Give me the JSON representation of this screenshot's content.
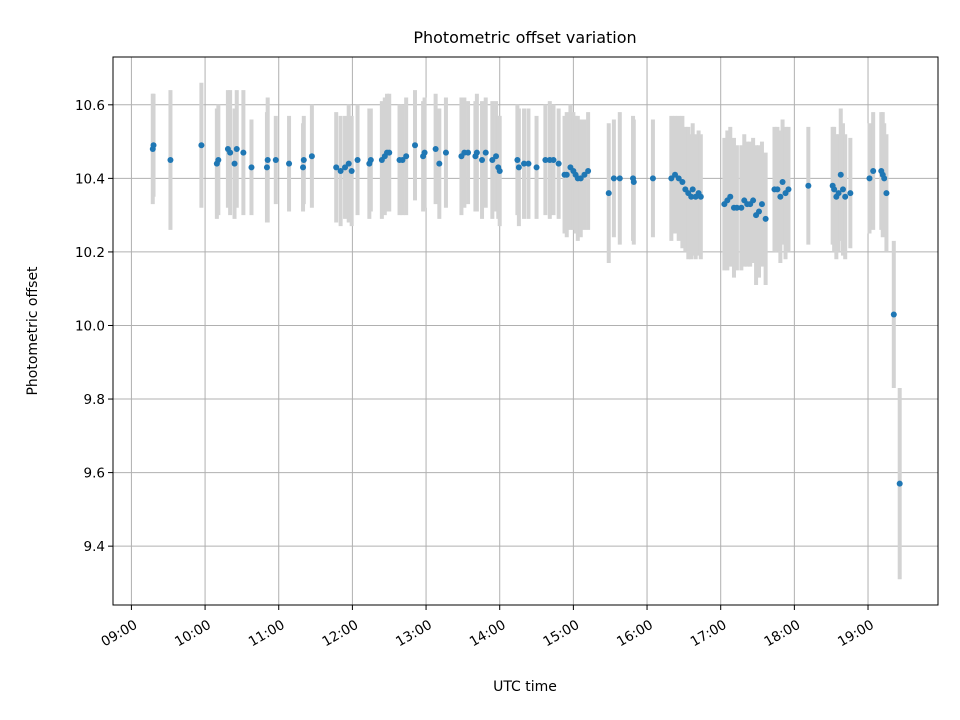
{
  "chart_data": {
    "type": "scatter",
    "title": "Photometric offset variation",
    "xlabel": "UTC time",
    "ylabel": "Photometric offset",
    "x_unit": "UTC hour (decimal)",
    "xlim": [
      8.75,
      19.95
    ],
    "ylim": [
      9.24,
      10.73
    ],
    "x_ticks": [
      {
        "value": 9,
        "label": "09:00"
      },
      {
        "value": 10,
        "label": "10:00"
      },
      {
        "value": 11,
        "label": "11:00"
      },
      {
        "value": 12,
        "label": "12:00"
      },
      {
        "value": 13,
        "label": "13:00"
      },
      {
        "value": 14,
        "label": "14:00"
      },
      {
        "value": 15,
        "label": "15:00"
      },
      {
        "value": 16,
        "label": "16:00"
      },
      {
        "value": 17,
        "label": "17:00"
      },
      {
        "value": 18,
        "label": "18:00"
      },
      {
        "value": 19,
        "label": "19:00"
      }
    ],
    "y_ticks": [
      {
        "value": 9.4,
        "label": "9.4"
      },
      {
        "value": 9.6,
        "label": "9.6"
      },
      {
        "value": 9.8,
        "label": "9.8"
      },
      {
        "value": 10.0,
        "label": "10.0"
      },
      {
        "value": 10.2,
        "label": "10.2"
      },
      {
        "value": 10.4,
        "label": "10.4"
      },
      {
        "value": 10.6,
        "label": "10.6"
      }
    ],
    "grid": true,
    "colors": {
      "marker": "#1f77b4",
      "error_bar": "#d3d3d3",
      "grid": "#b0b0b0"
    },
    "points": [
      {
        "x": 9.29,
        "y": 10.48,
        "err": 0.15
      },
      {
        "x": 9.3,
        "y": 10.49,
        "err": 0.14
      },
      {
        "x": 9.53,
        "y": 10.45,
        "err": 0.19
      },
      {
        "x": 9.95,
        "y": 10.49,
        "err": 0.17
      },
      {
        "x": 10.16,
        "y": 10.44,
        "err": 0.15
      },
      {
        "x": 10.18,
        "y": 10.45,
        "err": 0.15
      },
      {
        "x": 10.31,
        "y": 10.48,
        "err": 0.16
      },
      {
        "x": 10.34,
        "y": 10.47,
        "err": 0.17
      },
      {
        "x": 10.4,
        "y": 10.44,
        "err": 0.15
      },
      {
        "x": 10.43,
        "y": 10.48,
        "err": 0.16
      },
      {
        "x": 10.52,
        "y": 10.47,
        "err": 0.17
      },
      {
        "x": 10.63,
        "y": 10.43,
        "err": 0.13
      },
      {
        "x": 10.84,
        "y": 10.43,
        "err": 0.15
      },
      {
        "x": 10.85,
        "y": 10.45,
        "err": 0.17
      },
      {
        "x": 10.96,
        "y": 10.45,
        "err": 0.12
      },
      {
        "x": 11.14,
        "y": 10.44,
        "err": 0.13
      },
      {
        "x": 11.33,
        "y": 10.43,
        "err": 0.12
      },
      {
        "x": 11.34,
        "y": 10.45,
        "err": 0.12
      },
      {
        "x": 11.45,
        "y": 10.46,
        "err": 0.14
      },
      {
        "x": 11.78,
        "y": 10.43,
        "err": 0.15
      },
      {
        "x": 11.84,
        "y": 10.42,
        "err": 0.15
      },
      {
        "x": 11.9,
        "y": 10.43,
        "err": 0.14
      },
      {
        "x": 11.95,
        "y": 10.44,
        "err": 0.16
      },
      {
        "x": 11.99,
        "y": 10.42,
        "err": 0.15
      },
      {
        "x": 12.07,
        "y": 10.45,
        "err": 0.15
      },
      {
        "x": 12.23,
        "y": 10.44,
        "err": 0.15
      },
      {
        "x": 12.25,
        "y": 10.45,
        "err": 0.14
      },
      {
        "x": 12.4,
        "y": 10.45,
        "err": 0.16
      },
      {
        "x": 12.44,
        "y": 10.46,
        "err": 0.16
      },
      {
        "x": 12.47,
        "y": 10.47,
        "err": 0.16
      },
      {
        "x": 12.5,
        "y": 10.47,
        "err": 0.16
      },
      {
        "x": 12.64,
        "y": 10.45,
        "err": 0.15
      },
      {
        "x": 12.68,
        "y": 10.45,
        "err": 0.15
      },
      {
        "x": 12.73,
        "y": 10.46,
        "err": 0.16
      },
      {
        "x": 12.85,
        "y": 10.49,
        "err": 0.15
      },
      {
        "x": 12.96,
        "y": 10.46,
        "err": 0.15
      },
      {
        "x": 12.98,
        "y": 10.47,
        "err": 0.15
      },
      {
        "x": 13.13,
        "y": 10.48,
        "err": 0.15
      },
      {
        "x": 13.18,
        "y": 10.44,
        "err": 0.15
      },
      {
        "x": 13.27,
        "y": 10.47,
        "err": 0.15
      },
      {
        "x": 13.48,
        "y": 10.46,
        "err": 0.16
      },
      {
        "x": 13.52,
        "y": 10.47,
        "err": 0.15
      },
      {
        "x": 13.57,
        "y": 10.47,
        "err": 0.14
      },
      {
        "x": 13.67,
        "y": 10.46,
        "err": 0.15
      },
      {
        "x": 13.69,
        "y": 10.47,
        "err": 0.16
      },
      {
        "x": 13.76,
        "y": 10.45,
        "err": 0.16
      },
      {
        "x": 13.81,
        "y": 10.47,
        "err": 0.15
      },
      {
        "x": 13.9,
        "y": 10.45,
        "err": 0.16
      },
      {
        "x": 13.95,
        "y": 10.46,
        "err": 0.15
      },
      {
        "x": 13.98,
        "y": 10.43,
        "err": 0.14
      },
      {
        "x": 14.0,
        "y": 10.42,
        "err": 0.15
      },
      {
        "x": 14.24,
        "y": 10.45,
        "err": 0.15
      },
      {
        "x": 14.26,
        "y": 10.43,
        "err": 0.16
      },
      {
        "x": 14.33,
        "y": 10.44,
        "err": 0.15
      },
      {
        "x": 14.39,
        "y": 10.44,
        "err": 0.15
      },
      {
        "x": 14.5,
        "y": 10.43,
        "err": 0.14
      },
      {
        "x": 14.62,
        "y": 10.45,
        "err": 0.15
      },
      {
        "x": 14.68,
        "y": 10.45,
        "err": 0.16
      },
      {
        "x": 14.73,
        "y": 10.45,
        "err": 0.15
      },
      {
        "x": 14.8,
        "y": 10.44,
        "err": 0.15
      },
      {
        "x": 14.88,
        "y": 10.41,
        "err": 0.16
      },
      {
        "x": 14.91,
        "y": 10.41,
        "err": 0.17
      },
      {
        "x": 14.96,
        "y": 10.43,
        "err": 0.17
      },
      {
        "x": 15.0,
        "y": 10.42,
        "err": 0.16
      },
      {
        "x": 15.03,
        "y": 10.41,
        "err": 0.16
      },
      {
        "x": 15.06,
        "y": 10.4,
        "err": 0.17
      },
      {
        "x": 15.1,
        "y": 10.4,
        "err": 0.16
      },
      {
        "x": 15.15,
        "y": 10.41,
        "err": 0.15
      },
      {
        "x": 15.2,
        "y": 10.42,
        "err": 0.16
      },
      {
        "x": 15.48,
        "y": 10.36,
        "err": 0.19
      },
      {
        "x": 15.55,
        "y": 10.4,
        "err": 0.16
      },
      {
        "x": 15.63,
        "y": 10.4,
        "err": 0.18
      },
      {
        "x": 15.81,
        "y": 10.4,
        "err": 0.17
      },
      {
        "x": 15.82,
        "y": 10.39,
        "err": 0.17
      },
      {
        "x": 16.08,
        "y": 10.4,
        "err": 0.16
      },
      {
        "x": 16.33,
        "y": 10.4,
        "err": 0.17
      },
      {
        "x": 16.38,
        "y": 10.41,
        "err": 0.16
      },
      {
        "x": 16.43,
        "y": 10.4,
        "err": 0.17
      },
      {
        "x": 16.48,
        "y": 10.39,
        "err": 0.18
      },
      {
        "x": 16.52,
        "y": 10.37,
        "err": 0.17
      },
      {
        "x": 16.56,
        "y": 10.36,
        "err": 0.18
      },
      {
        "x": 16.6,
        "y": 10.35,
        "err": 0.17
      },
      {
        "x": 16.62,
        "y": 10.37,
        "err": 0.18
      },
      {
        "x": 16.66,
        "y": 10.35,
        "err": 0.17
      },
      {
        "x": 16.7,
        "y": 10.36,
        "err": 0.17
      },
      {
        "x": 16.73,
        "y": 10.35,
        "err": 0.17
      },
      {
        "x": 17.05,
        "y": 10.33,
        "err": 0.18
      },
      {
        "x": 17.09,
        "y": 10.34,
        "err": 0.19
      },
      {
        "x": 17.13,
        "y": 10.35,
        "err": 0.19
      },
      {
        "x": 17.18,
        "y": 10.32,
        "err": 0.19
      },
      {
        "x": 17.22,
        "y": 10.32,
        "err": 0.17
      },
      {
        "x": 17.28,
        "y": 10.32,
        "err": 0.17
      },
      {
        "x": 17.32,
        "y": 10.34,
        "err": 0.18
      },
      {
        "x": 17.36,
        "y": 10.33,
        "err": 0.17
      },
      {
        "x": 17.4,
        "y": 10.33,
        "err": 0.17
      },
      {
        "x": 17.44,
        "y": 10.34,
        "err": 0.17
      },
      {
        "x": 17.48,
        "y": 10.3,
        "err": 0.19
      },
      {
        "x": 17.52,
        "y": 10.31,
        "err": 0.18
      },
      {
        "x": 17.56,
        "y": 10.33,
        "err": 0.17
      },
      {
        "x": 17.61,
        "y": 10.29,
        "err": 0.18
      },
      {
        "x": 17.73,
        "y": 10.37,
        "err": 0.17
      },
      {
        "x": 17.77,
        "y": 10.37,
        "err": 0.17
      },
      {
        "x": 17.81,
        "y": 10.35,
        "err": 0.18
      },
      {
        "x": 17.84,
        "y": 10.39,
        "err": 0.17
      },
      {
        "x": 17.88,
        "y": 10.36,
        "err": 0.18
      },
      {
        "x": 17.92,
        "y": 10.37,
        "err": 0.17
      },
      {
        "x": 18.19,
        "y": 10.38,
        "err": 0.16
      },
      {
        "x": 18.52,
        "y": 10.38,
        "err": 0.16
      },
      {
        "x": 18.54,
        "y": 10.37,
        "err": 0.17
      },
      {
        "x": 18.57,
        "y": 10.35,
        "err": 0.17
      },
      {
        "x": 18.6,
        "y": 10.36,
        "err": 0.16
      },
      {
        "x": 18.63,
        "y": 10.41,
        "err": 0.18
      },
      {
        "x": 18.66,
        "y": 10.37,
        "err": 0.18
      },
      {
        "x": 18.69,
        "y": 10.35,
        "err": 0.17
      },
      {
        "x": 18.76,
        "y": 10.36,
        "err": 0.15
      },
      {
        "x": 19.02,
        "y": 10.4,
        "err": 0.15
      },
      {
        "x": 19.07,
        "y": 10.42,
        "err": 0.16
      },
      {
        "x": 19.18,
        "y": 10.42,
        "err": 0.16
      },
      {
        "x": 19.2,
        "y": 10.41,
        "err": 0.17
      },
      {
        "x": 19.22,
        "y": 10.4,
        "err": 0.15
      },
      {
        "x": 19.25,
        "y": 10.36,
        "err": 0.16
      },
      {
        "x": 19.35,
        "y": 10.03,
        "err": 0.2
      },
      {
        "x": 19.43,
        "y": 9.57,
        "err": 0.26
      }
    ]
  }
}
